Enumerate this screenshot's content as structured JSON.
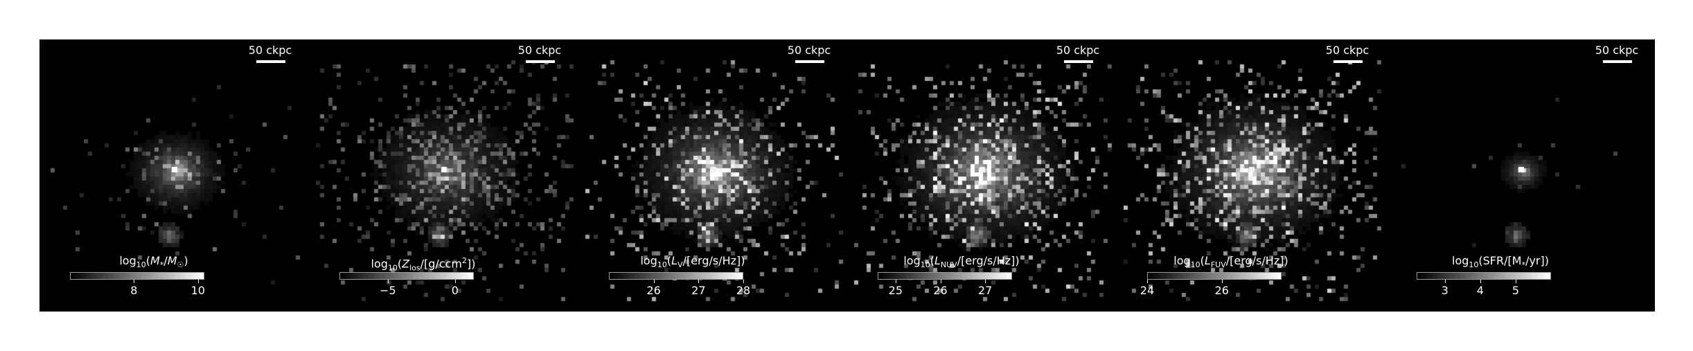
{
  "scale_bar": {
    "label": "50 ckpc"
  },
  "panels": [
    {
      "colorbar": {
        "label": "log<sub>10</sub>(<i>M</i><sub>*</sub>/<i>M</i><sub>☉</sub>)",
        "range": [
          6.0,
          10.2
        ],
        "ticks": [
          {
            "value": 8,
            "label": "8"
          },
          {
            "value": 10,
            "label": "10"
          }
        ]
      },
      "image": {
        "extent": 0.55,
        "density": 0.22,
        "center_peak": 1.0,
        "satellite": true,
        "satellite_strength": 0.55,
        "halo_strength": 0.75,
        "noise": 0.25
      }
    },
    {
      "colorbar": {
        "label": "log<sub>10</sub>(<i>Z</i><sub>los</sub>/[g/ccm<sup>2</sup>])",
        "range": [
          -8.6,
          1.4
        ],
        "ticks": [
          {
            "value": -5,
            "label": "−5"
          },
          {
            "value": 0,
            "label": "0"
          }
        ]
      },
      "image": {
        "extent": 1.0,
        "density": 0.55,
        "center_peak": 1.0,
        "satellite": true,
        "satellite_strength": 0.5,
        "halo_strength": 0.45,
        "noise": 0.3
      }
    },
    {
      "colorbar": {
        "label": "log<sub>10</sub>(<i>L</i><sub>V</sub>/[erg/s/Hz])",
        "range": [
          25.0,
          28.0
        ],
        "ticks": [
          {
            "value": 26,
            "label": "26"
          },
          {
            "value": 27,
            "label": "27"
          },
          {
            "value": 28,
            "label": "28"
          }
        ]
      },
      "image": {
        "extent": 0.9,
        "density": 0.5,
        "center_peak": 0.95,
        "satellite": true,
        "satellite_strength": 0.6,
        "halo_strength": 0.8,
        "noise": 0.55
      }
    },
    {
      "colorbar": {
        "label": "log<sub>10</sub>(<i>L</i><sub>NUV</sub>/[erg/s/Hz])",
        "range": [
          24.6,
          27.6
        ],
        "ticks": [
          {
            "value": 25,
            "label": "25"
          },
          {
            "value": 26,
            "label": "26"
          },
          {
            "value": 27,
            "label": "27"
          }
        ]
      },
      "image": {
        "extent": 1.0,
        "density": 0.6,
        "center_peak": 0.95,
        "satellite": true,
        "satellite_strength": 0.6,
        "halo_strength": 0.8,
        "noise": 0.6
      }
    },
    {
      "colorbar": {
        "label": "log<sub>10</sub>(<i>L</i><sub>FUV</sub>/[erg/s/Hz])",
        "range": [
          24.0,
          27.6
        ],
        "ticks": [
          {
            "value": 24,
            "label": "24"
          },
          {
            "value": 26,
            "label": "26"
          }
        ]
      },
      "image": {
        "extent": 1.0,
        "density": 0.6,
        "center_peak": 0.95,
        "satellite": true,
        "satellite_strength": 0.6,
        "halo_strength": 0.8,
        "noise": 0.6
      }
    },
    {
      "colorbar": {
        "label": "log<sub>10</sub>(SFR/[M<sub>*</sub>/yr])",
        "range": [
          2.2,
          6.0
        ],
        "ticks": [
          {
            "value": 3,
            "label": "3"
          },
          {
            "value": 4,
            "label": "4"
          },
          {
            "value": 5,
            "label": "5"
          }
        ]
      },
      "image": {
        "extent": 0.28,
        "density": 0.08,
        "center_peak": 1.0,
        "satellite": true,
        "satellite_strength": 0.5,
        "halo_strength": 0.7,
        "noise": 0.2
      }
    }
  ]
}
